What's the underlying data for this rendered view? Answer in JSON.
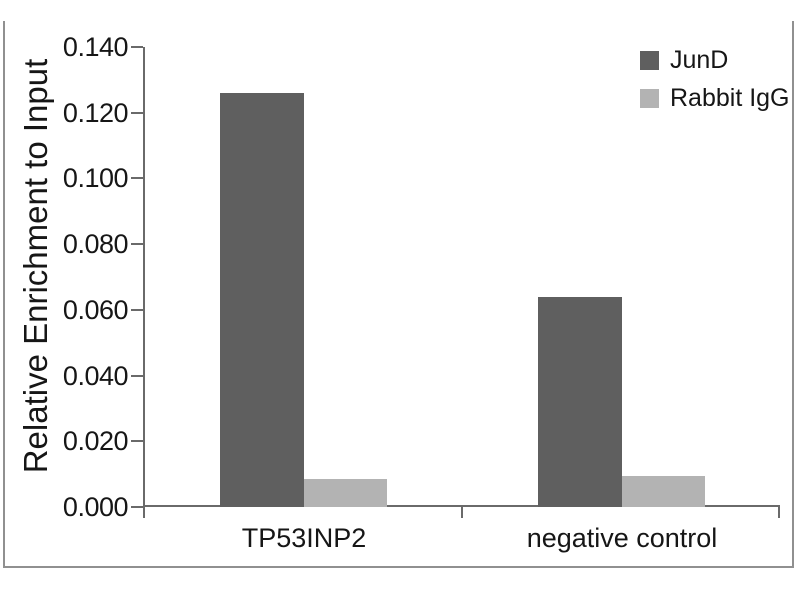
{
  "chart_data": {
    "type": "bar",
    "title": "",
    "ylabel": "Relative Enrichment to Input",
    "xlabel": "",
    "categories": [
      "TP53INP2",
      "negative control"
    ],
    "series": [
      {
        "name": "JunD",
        "color": "#5f5f5f",
        "values": [
          0.126,
          0.064
        ]
      },
      {
        "name": "Rabbit IgG",
        "color": "#b3b3b3",
        "values": [
          0.0085,
          0.0095
        ]
      }
    ],
    "ylim": [
      0.0,
      0.14
    ],
    "ytick_step": 0.02,
    "ytick_labels": [
      "0.140",
      "0.120",
      "0.100",
      "0.080",
      "0.060",
      "0.040",
      "0.020",
      "0.000"
    ],
    "grid": false,
    "legend_position": "top-right"
  },
  "colors": {
    "axis": "#6a6a6a",
    "frame_border": "#909090",
    "text": "#161616",
    "background": "#ffffff"
  }
}
